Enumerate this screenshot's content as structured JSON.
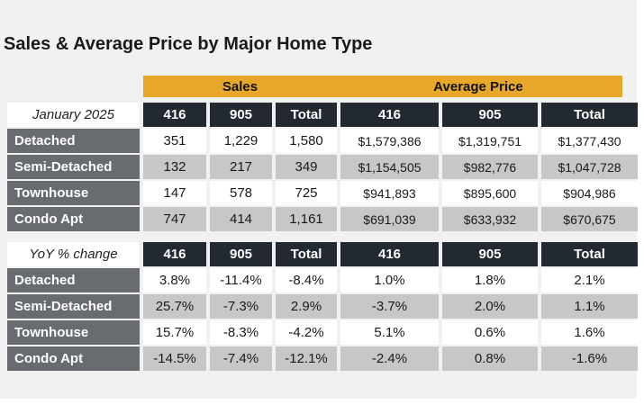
{
  "title": "Sales & Average Price by Major Home Type",
  "group_headers": {
    "sales": "Sales",
    "average_price": "Average Price"
  },
  "table1": {
    "corner": "January 2025",
    "columns": [
      "416",
      "905",
      "Total",
      "416",
      "905",
      "Total"
    ],
    "rows": [
      {
        "label": "Detached",
        "values": [
          "351",
          "1,229",
          "1,580",
          "$1,579,386",
          "$1,319,751",
          "$1,377,430"
        ]
      },
      {
        "label": "Semi-Detached",
        "values": [
          "132",
          "217",
          "349",
          "$1,154,505",
          "$982,776",
          "$1,047,728"
        ]
      },
      {
        "label": "Townhouse",
        "values": [
          "147",
          "578",
          "725",
          "$941,893",
          "$895,600",
          "$904,986"
        ]
      },
      {
        "label": "Condo Apt",
        "values": [
          "747",
          "414",
          "1,161",
          "$691,039",
          "$633,932",
          "$670,675"
        ]
      }
    ]
  },
  "table2": {
    "corner": "YoY % change",
    "columns": [
      "416",
      "905",
      "Total",
      "416",
      "905",
      "Total"
    ],
    "rows": [
      {
        "label": "Detached",
        "values": [
          "3.8%",
          "-11.4%",
          "-8.4%",
          "1.0%",
          "1.8%",
          "2.1%"
        ]
      },
      {
        "label": "Semi-Detached",
        "values": [
          "25.7%",
          "-7.3%",
          "2.9%",
          "-3.7%",
          "2.0%",
          "1.1%"
        ]
      },
      {
        "label": "Townhouse",
        "values": [
          "15.7%",
          "-8.3%",
          "-4.2%",
          "5.1%",
          "0.6%",
          "1.6%"
        ]
      },
      {
        "label": "Condo Apt",
        "values": [
          "-14.5%",
          "-7.4%",
          "-12.1%",
          "-2.4%",
          "0.8%",
          "-1.6%"
        ]
      }
    ]
  },
  "colors": {
    "group_header_bg": "#e7a729",
    "column_header_bg": "#232931",
    "row_label_bg": "#686c70",
    "row_light_bg": "#ffffff",
    "row_dark_bg": "#c7c7c7",
    "panel_bg": "#f1f1f1"
  }
}
